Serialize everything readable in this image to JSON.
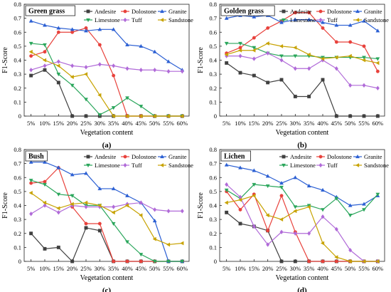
{
  "chart_data": [
    {
      "type": "line",
      "panel_label": "(a)",
      "tag": "Green grass",
      "x": [
        "5%",
        "10%",
        "15%",
        "20%",
        "25%",
        "30%",
        "35%",
        "40%",
        "45%",
        "50%",
        "55%",
        "60%"
      ],
      "xlabel": "Vegetation content",
      "ylabel": "F1-Score",
      "ylim": [
        0,
        0.8
      ],
      "yticks": [
        "0",
        "0.1",
        "0.2",
        "0.3",
        "0.4",
        "0.5",
        "0.6",
        "0.7",
        "0.8"
      ],
      "series": [
        {
          "name": "Andesite",
          "color": "#404040",
          "marker": "square",
          "values": [
            0.29,
            0.33,
            0.24,
            0,
            0,
            0,
            0,
            0,
            0,
            0,
            0,
            0
          ]
        },
        {
          "name": "Dolostone",
          "color": "#e8413b",
          "marker": "circle",
          "values": [
            0.43,
            0.46,
            0.6,
            0.6,
            0.63,
            0.51,
            0.29,
            0,
            0,
            0,
            0,
            0
          ]
        },
        {
          "name": "Granite",
          "color": "#2b5fd3",
          "marker": "triangle",
          "values": [
            0.68,
            0.65,
            0.63,
            0.62,
            0.61,
            0.62,
            0.62,
            0.51,
            0.5,
            0.46,
            0.39,
            0.33
          ]
        },
        {
          "name": "Limestone",
          "color": "#2aa65b",
          "marker": "triangle-down",
          "values": [
            0.52,
            0.51,
            0.3,
            0.22,
            0.12,
            0.01,
            0.06,
            0.13,
            0.07,
            0,
            0,
            0
          ]
        },
        {
          "name": "Tuff",
          "color": "#b06ad8",
          "marker": "diamond",
          "values": [
            0.33,
            0.36,
            0.39,
            0.36,
            0.35,
            0.37,
            0.36,
            0.34,
            0.33,
            0.33,
            0.32,
            0.32
          ]
        },
        {
          "name": "Sandstone",
          "color": "#c7a200",
          "marker": "triangle-left",
          "values": [
            0.46,
            0.4,
            0.36,
            0.28,
            0.3,
            0.15,
            0,
            0,
            0,
            0,
            0,
            0
          ]
        }
      ]
    },
    {
      "type": "line",
      "panel_label": "(b)",
      "tag": "Golden grass",
      "x": [
        "5%",
        "10%",
        "15%",
        "20%",
        "25%",
        "30%",
        "35%",
        "40%",
        "45%",
        "50%",
        "55%",
        "60%"
      ],
      "xlabel": "Vegetation content",
      "ylabel": "F1-Score",
      "ylim": [
        0,
        0.8
      ],
      "yticks": [
        "0",
        "0.1",
        "0.2",
        "0.3",
        "0.4",
        "0.5",
        "0.6",
        "0.7",
        "0.8"
      ],
      "series": [
        {
          "name": "Andesite",
          "color": "#404040",
          "marker": "square",
          "values": [
            0.38,
            0.31,
            0.29,
            0.24,
            0.26,
            0.14,
            0.14,
            0.26,
            0,
            0,
            0,
            0
          ]
        },
        {
          "name": "Dolostone",
          "color": "#e8413b",
          "marker": "circle",
          "values": [
            0.45,
            0.49,
            0.56,
            0.63,
            0.68,
            0.74,
            0.74,
            0.63,
            0.53,
            0.53,
            0.5,
            0.32
          ]
        },
        {
          "name": "Granite",
          "color": "#2b5fd3",
          "marker": "triangle",
          "values": [
            0.7,
            0.72,
            0.71,
            0.72,
            0.67,
            0.69,
            0.69,
            0.67,
            0.65,
            0.65,
            0.68,
            0.61
          ]
        },
        {
          "name": "Limestone",
          "color": "#2aa65b",
          "marker": "triangle-down",
          "values": [
            0.52,
            0.52,
            0.49,
            0.45,
            0.43,
            0.43,
            0.43,
            0.42,
            0.42,
            0.42,
            0.42,
            0.41
          ]
        },
        {
          "name": "Tuff",
          "color": "#b06ad8",
          "marker": "diamond",
          "values": [
            0.43,
            0.43,
            0.41,
            0.45,
            0.4,
            0.34,
            0.34,
            0.4,
            0.34,
            0.22,
            0.22,
            0.2
          ]
        },
        {
          "name": "Sandstone",
          "color": "#c7a200",
          "marker": "triangle-left",
          "values": [
            0.44,
            0.47,
            0.47,
            0.52,
            0.5,
            0.49,
            0.44,
            0.41,
            0.42,
            0.43,
            0.4,
            0.38
          ]
        }
      ]
    },
    {
      "type": "line",
      "panel_label": "(c)",
      "tag": "Bush",
      "x": [
        "5%",
        "10%",
        "15%",
        "20%",
        "25%",
        "30%",
        "35%",
        "40%",
        "45%",
        "50%",
        "55%",
        "60%"
      ],
      "xlabel": "Vegetation content",
      "ylabel": "F1-Score",
      "ylim": [
        0,
        0.8
      ],
      "yticks": [
        "0",
        "0.1",
        "0.2",
        "0.3",
        "0.4",
        "0.5",
        "0.6",
        "0.7",
        "0.8"
      ],
      "series": [
        {
          "name": "Andesite",
          "color": "#404040",
          "marker": "square",
          "values": [
            0.2,
            0.09,
            0.1,
            0,
            0.24,
            0.22,
            0,
            0,
            0,
            0,
            0,
            0
          ]
        },
        {
          "name": "Dolostone",
          "color": "#e8413b",
          "marker": "circle",
          "values": [
            0.56,
            0.57,
            0.67,
            0.39,
            0.27,
            0.27,
            0,
            0,
            0,
            0,
            0,
            0
          ]
        },
        {
          "name": "Granite",
          "color": "#2b5fd3",
          "marker": "triangle",
          "values": [
            0.71,
            0.71,
            0.67,
            0.62,
            0.63,
            0.52,
            0.52,
            0.47,
            0.42,
            0.29,
            0,
            0
          ]
        },
        {
          "name": "Limestone",
          "color": "#2aa65b",
          "marker": "triangle-down",
          "values": [
            0.58,
            0.55,
            0.48,
            0.47,
            0.4,
            0.4,
            0.27,
            0.14,
            0.05,
            0,
            0,
            0
          ]
        },
        {
          "name": "Tuff",
          "color": "#b06ad8",
          "marker": "diamond",
          "values": [
            0.34,
            0.4,
            0.35,
            0.4,
            0.39,
            0.39,
            0.39,
            0.41,
            0.42,
            0.37,
            0.36,
            0.36
          ]
        },
        {
          "name": "Sandstone",
          "color": "#c7a200",
          "marker": "triangle-left",
          "values": [
            0.49,
            0.42,
            0.38,
            0.41,
            0.42,
            0.4,
            0.35,
            0.4,
            0.33,
            0.16,
            0.12,
            0.13
          ]
        }
      ]
    },
    {
      "type": "line",
      "panel_label": "(d)",
      "tag": "Lichen",
      "x": [
        "5%",
        "10%",
        "15%",
        "20%",
        "25%",
        "30%",
        "35%",
        "40%",
        "45%",
        "50%",
        "55%",
        "60%"
      ],
      "xlabel": "Vegetation content",
      "ylabel": "F1-Score",
      "ylim": [
        0,
        0.8
      ],
      "yticks": [
        "0",
        "0.1",
        "0.2",
        "0.3",
        "0.4",
        "0.5",
        "0.6",
        "0.7",
        "0.8"
      ],
      "series": [
        {
          "name": "Andesite",
          "color": "#404040",
          "marker": "square",
          "values": [
            0.35,
            0.27,
            0.25,
            0.22,
            0,
            0,
            0,
            0,
            0,
            0,
            0,
            0
          ]
        },
        {
          "name": "Dolostone",
          "color": "#e8413b",
          "marker": "circle",
          "values": [
            0.5,
            0.37,
            0.48,
            0.22,
            0.47,
            0.21,
            0,
            0,
            0,
            0,
            0,
            0
          ]
        },
        {
          "name": "Granite",
          "color": "#2b5fd3",
          "marker": "triangle",
          "values": [
            0.69,
            0.67,
            0.65,
            0.61,
            0.56,
            0.6,
            0.54,
            0.51,
            0.46,
            0.4,
            0.41,
            0.47
          ]
        },
        {
          "name": "Limestone",
          "color": "#2aa65b",
          "marker": "triangle-down",
          "values": [
            0.51,
            0.45,
            0.55,
            0.54,
            0.53,
            0.39,
            0.4,
            0.37,
            0.45,
            0.33,
            0.37,
            0.48
          ]
        },
        {
          "name": "Tuff",
          "color": "#b06ad8",
          "marker": "diamond",
          "values": [
            0.55,
            0.46,
            0.25,
            0.12,
            0.21,
            0.2,
            0.2,
            0.32,
            0.23,
            0.08,
            0,
            0
          ]
        },
        {
          "name": "Sandstone",
          "color": "#c7a200",
          "marker": "triangle-left",
          "values": [
            0.42,
            0.44,
            0.47,
            0.33,
            0.3,
            0.36,
            0.39,
            0.13,
            0.03,
            0,
            0,
            0
          ]
        }
      ]
    }
  ]
}
